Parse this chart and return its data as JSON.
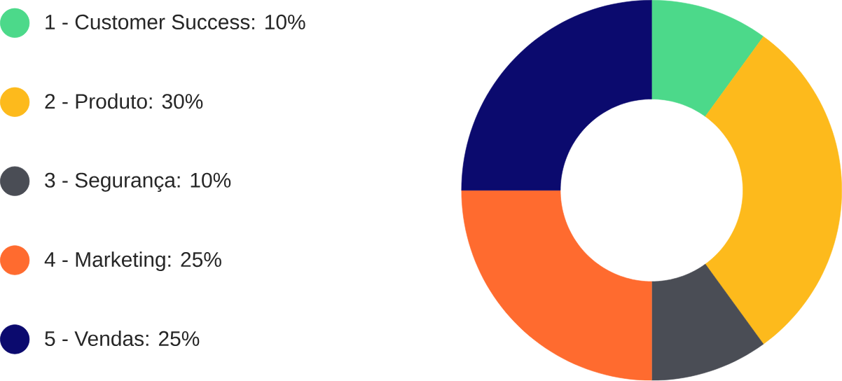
{
  "chart_data": {
    "type": "donut",
    "categories": [
      "1 - Customer Success: 10%",
      "2 - Produto: 30%",
      "3 - Segurança: 10%",
      "4 - Marketing: 25%",
      "5 - Vendas: 25%"
    ],
    "values": [
      10,
      30,
      10,
      25,
      25
    ],
    "colors": [
      "#4cd98a",
      "#fdba1c",
      "#4a4d55",
      "#ff6b2f",
      "#0b0a6e"
    ],
    "legend": "left"
  }
}
